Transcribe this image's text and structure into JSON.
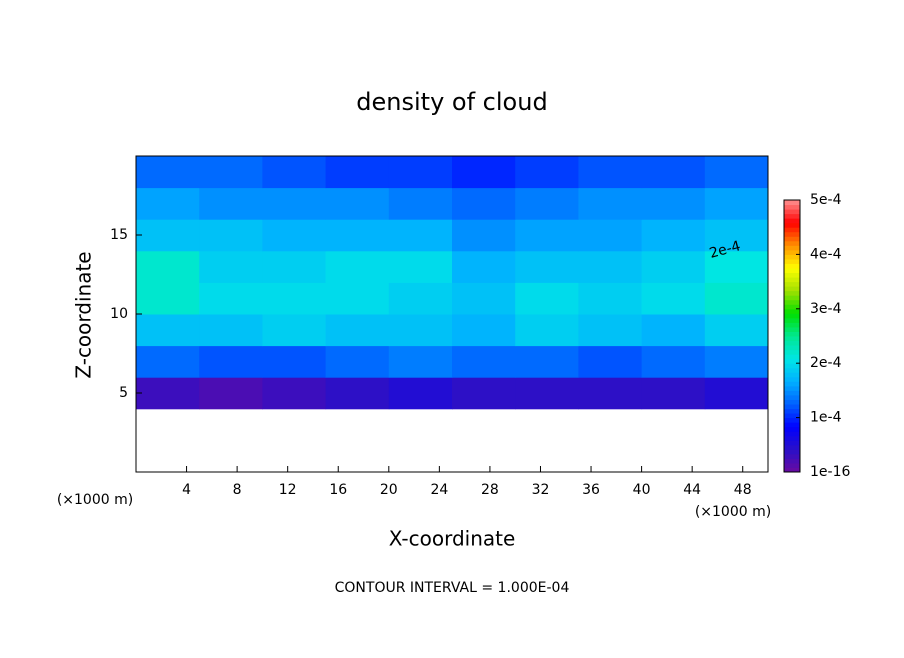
{
  "chart_data": {
    "type": "heatmap",
    "title": "density of cloud",
    "x_label": "X-coordinate",
    "y_label": "Z-coordinate",
    "x_unit_left": "(×1000 m)",
    "x_unit_right": "(×1000 m)",
    "footer": "CONTOUR INTERVAL = 1.000E-04",
    "contour_label": "2e-4",
    "xlim": [
      0,
      50
    ],
    "xticks": [
      4,
      8,
      12,
      16,
      20,
      24,
      28,
      32,
      36,
      40,
      44,
      48
    ],
    "ylim": [
      0,
      20
    ],
    "yticks": [
      5,
      10,
      15
    ],
    "x": [
      2.5,
      7.5,
      12.5,
      17.5,
      22.5,
      27.5,
      32.5,
      37.5,
      42.5,
      47.5
    ],
    "y": [
      1,
      3,
      5,
      7,
      9,
      11,
      13,
      15,
      17,
      19
    ],
    "z": [
      [
        null,
        null,
        null,
        null,
        null,
        null,
        null,
        null,
        null,
        null
      ],
      [
        null,
        null,
        null,
        null,
        null,
        null,
        null,
        null,
        null,
        null
      ],
      [
        3e-05,
        2e-05,
        3e-05,
        4e-05,
        5e-05,
        4e-05,
        4e-05,
        4e-05,
        4e-05,
        5e-05
      ],
      [
        0.00013,
        0.00012,
        0.00012,
        0.00013,
        0.00014,
        0.00013,
        0.00013,
        0.00012,
        0.00013,
        0.00014
      ],
      [
        0.00018,
        0.00018,
        0.00019,
        0.00018,
        0.00018,
        0.00017,
        0.00019,
        0.00018,
        0.00017,
        0.00019
      ],
      [
        0.00022,
        0.0002,
        0.0002,
        0.0002,
        0.00019,
        0.00018,
        0.0002,
        0.00019,
        0.0002,
        0.00022
      ],
      [
        0.00022,
        0.00019,
        0.00019,
        0.0002,
        0.0002,
        0.00017,
        0.00018,
        0.00018,
        0.00019,
        0.00021
      ],
      [
        0.00018,
        0.00018,
        0.00017,
        0.00017,
        0.00017,
        0.00015,
        0.00016,
        0.00016,
        0.00017,
        0.00018
      ],
      [
        0.00016,
        0.00015,
        0.00015,
        0.00015,
        0.00014,
        0.00013,
        0.00014,
        0.00015,
        0.00015,
        0.00016
      ],
      [
        0.00013,
        0.00013,
        0.00012,
        0.00011,
        0.00011,
        0.0001,
        0.00011,
        0.00012,
        0.00012,
        0.00013
      ]
    ],
    "colorbar_lim": [
      1e-16,
      0.0005
    ],
    "colorbar_ticks": [
      {
        "value": 1e-16,
        "label": "1e-16"
      },
      {
        "value": 0.0001,
        "label": "1e-4"
      },
      {
        "value": 0.0002,
        "label": "2e-4"
      },
      {
        "value": 0.0003,
        "label": "3e-4"
      },
      {
        "value": 0.0004,
        "label": "4e-4"
      },
      {
        "value": 0.0005,
        "label": "5e-4"
      }
    ],
    "colormap": [
      "#6a0aa0",
      "#2a10c8",
      "#0000ff",
      "#0060ff",
      "#00b0ff",
      "#00e6e6",
      "#00e890",
      "#00e000",
      "#a0e000",
      "#ffff00",
      "#ff9000",
      "#ff0000",
      "#ff9090"
    ]
  }
}
